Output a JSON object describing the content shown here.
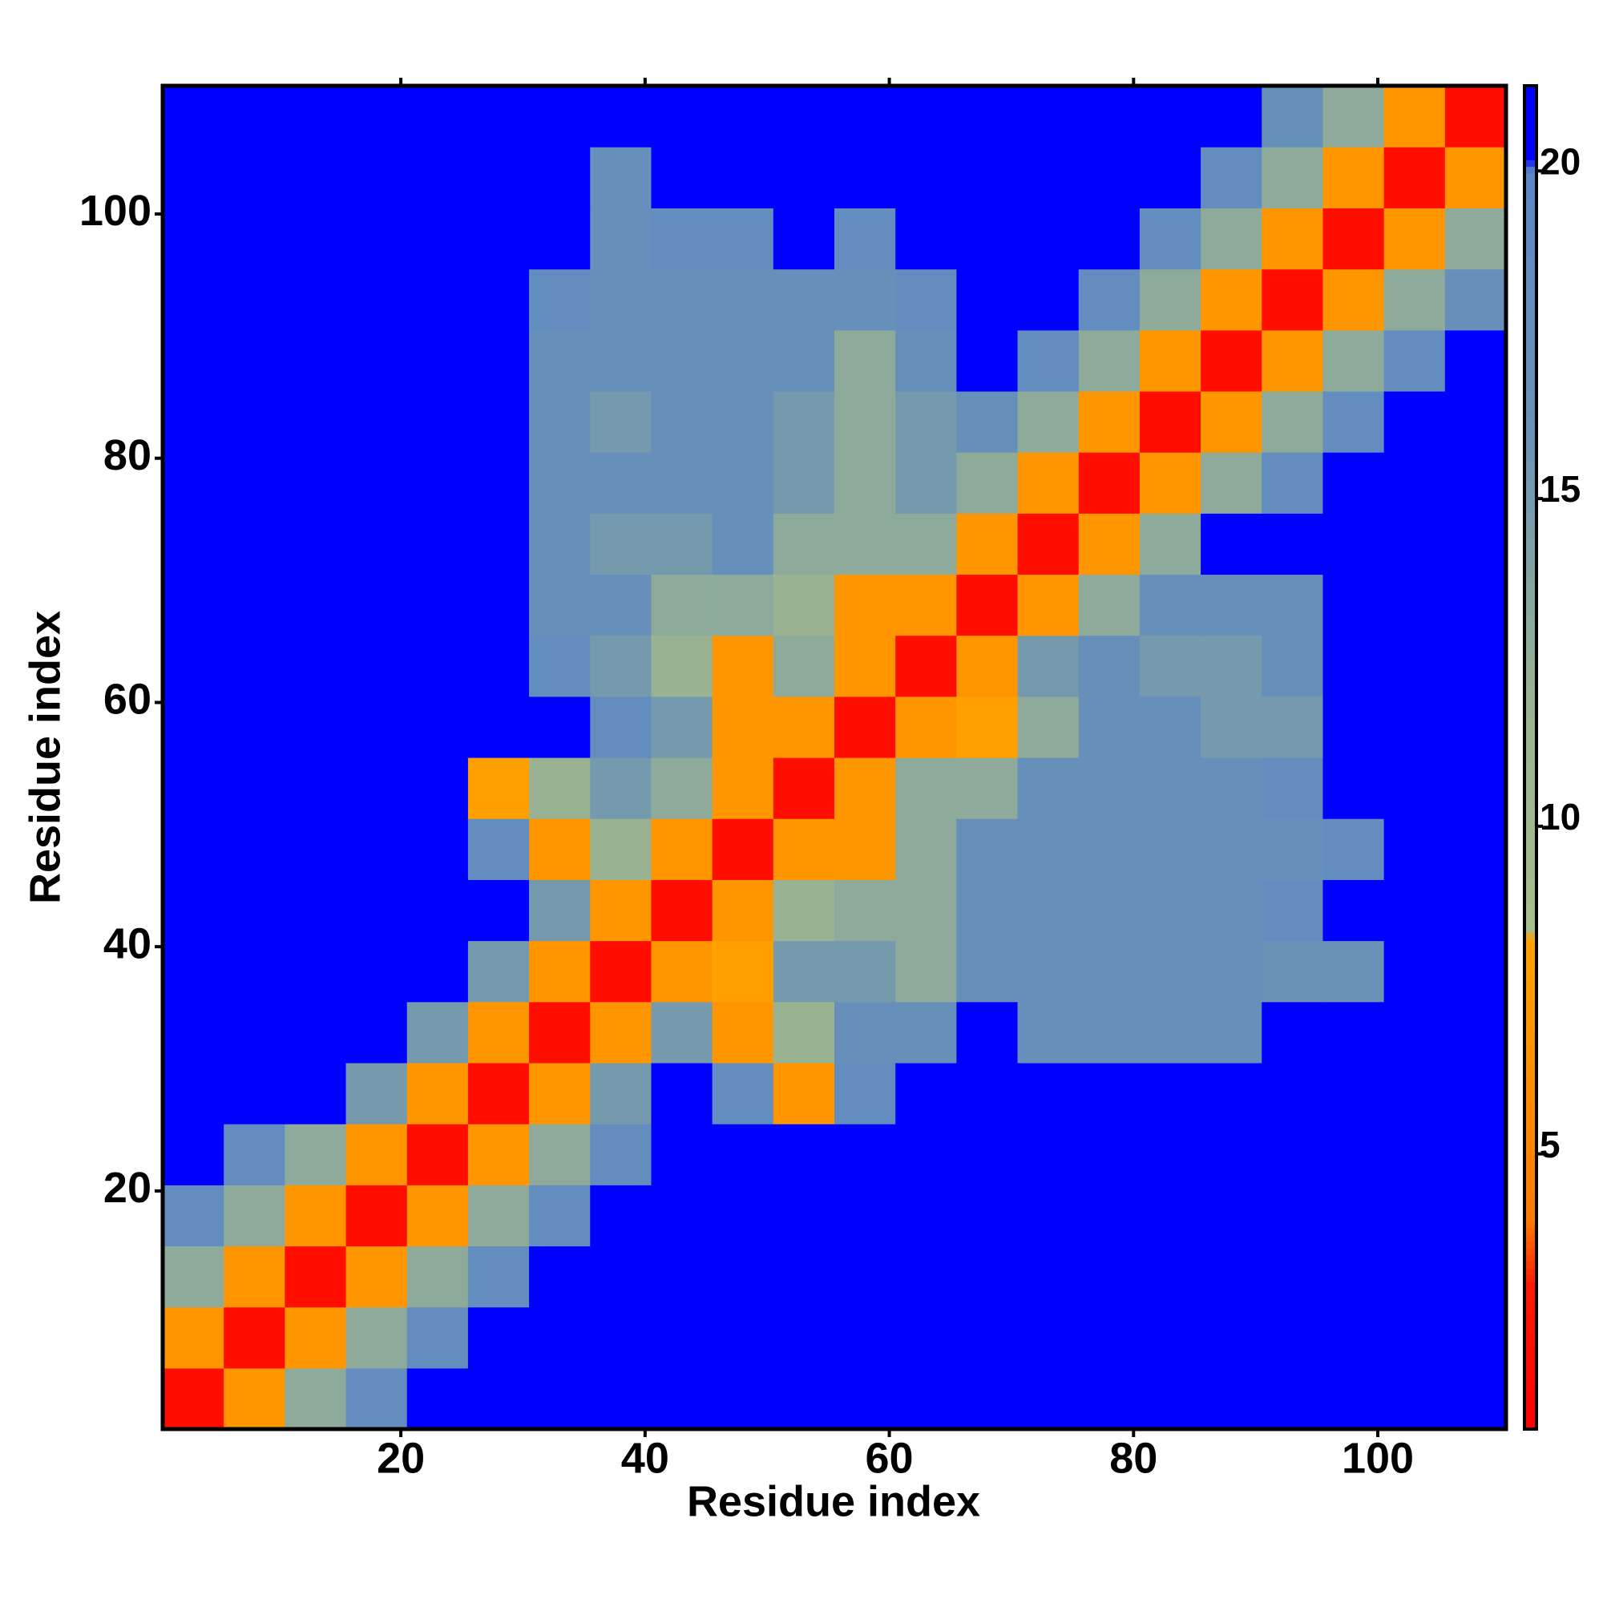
{
  "chart_data": {
    "type": "heatmap",
    "xlabel": "Residue index",
    "ylabel": "Residue index",
    "xbins": [
      0.5,
      5.5,
      10.5,
      15.5,
      20.5,
      25.5,
      30.5,
      35.5,
      40.5,
      45.5,
      50.5,
      55.5,
      60.5,
      65.5,
      70.5,
      75.5,
      80.5,
      85.5,
      90.5,
      95.5,
      100.5,
      105.5,
      110.5
    ],
    "ybins": [
      0.5,
      5.5,
      10.5,
      15.5,
      20.5,
      25.5,
      30.5,
      35.5,
      40.5,
      45.5,
      50.5,
      55.5,
      60.5,
      65.5,
      70.5,
      75.5,
      80.5,
      85.5,
      90.5,
      95.5,
      100.5,
      105.5,
      110.5
    ],
    "values": [
      [
        2,
        7,
        13,
        18,
        21,
        21,
        21,
        21,
        21,
        21,
        21,
        21,
        21,
        21,
        21,
        21,
        21,
        21,
        21,
        21,
        21,
        21
      ],
      [
        7,
        2,
        7,
        13,
        18,
        21,
        21,
        21,
        21,
        21,
        21,
        21,
        21,
        21,
        21,
        21,
        21,
        21,
        21,
        21,
        21,
        21
      ],
      [
        13,
        7,
        2,
        7,
        13,
        18,
        21,
        21,
        21,
        21,
        21,
        21,
        21,
        21,
        21,
        21,
        21,
        21,
        21,
        21,
        21,
        21
      ],
      [
        18,
        13,
        7,
        2,
        7,
        13,
        18,
        21,
        21,
        21,
        21,
        21,
        21,
        21,
        21,
        21,
        21,
        21,
        21,
        21,
        21,
        21
      ],
      [
        21,
        18,
        13,
        7,
        2,
        7,
        13,
        18,
        21,
        21,
        21,
        21,
        21,
        21,
        21,
        21,
        21,
        21,
        21,
        21,
        21,
        21
      ],
      [
        21,
        21,
        21,
        15,
        7,
        2,
        7,
        15,
        21,
        18,
        7,
        18,
        21,
        21,
        21,
        21,
        21,
        21,
        21,
        21,
        21,
        21
      ],
      [
        21,
        21,
        21,
        21,
        15,
        7,
        2,
        7,
        15,
        7,
        12,
        17,
        17,
        21,
        17,
        17,
        17,
        17,
        21,
        21,
        21,
        21
      ],
      [
        21,
        21,
        21,
        21,
        21,
        15,
        7,
        2,
        7,
        8,
        15,
        15,
        13,
        17,
        17,
        17,
        17,
        17,
        16,
        16,
        21,
        21
      ],
      [
        21,
        21,
        21,
        21,
        21,
        21,
        15,
        7,
        2,
        7,
        12,
        13,
        13,
        17,
        17,
        17,
        17,
        17,
        18,
        21,
        21,
        21
      ],
      [
        21,
        21,
        21,
        21,
        21,
        18,
        7,
        12,
        7,
        2,
        7,
        7,
        13,
        17,
        17,
        17,
        17,
        17,
        17,
        18,
        21,
        21
      ],
      [
        21,
        21,
        21,
        21,
        21,
        8,
        12,
        15,
        13,
        7,
        2,
        7,
        13,
        13,
        17,
        17,
        17,
        17,
        18,
        21,
        21,
        21
      ],
      [
        21,
        21,
        21,
        21,
        21,
        21,
        21,
        18,
        15,
        7,
        7,
        2,
        7,
        8,
        13,
        17,
        17,
        15,
        15,
        21,
        21,
        21
      ],
      [
        21,
        21,
        21,
        21,
        21,
        21,
        18,
        15,
        12,
        7,
        13,
        7,
        2,
        7,
        15,
        17,
        15,
        15,
        17,
        21,
        21,
        21
      ],
      [
        21,
        21,
        21,
        21,
        21,
        21,
        17,
        17,
        13,
        13,
        12,
        7,
        7,
        2,
        7,
        13,
        17,
        17,
        17,
        21,
        21,
        21
      ],
      [
        21,
        21,
        21,
        21,
        21,
        21,
        17,
        15,
        15,
        17,
        13,
        13,
        13,
        7,
        2,
        7,
        13,
        21,
        21,
        21,
        21,
        21
      ],
      [
        21,
        21,
        21,
        21,
        21,
        21,
        17,
        17,
        17,
        17,
        15,
        13,
        15,
        13,
        7,
        2,
        7,
        13,
        18,
        21,
        21,
        21
      ],
      [
        21,
        21,
        21,
        21,
        21,
        21,
        17,
        15,
        17,
        17,
        15,
        13,
        15,
        17,
        13,
        7,
        2,
        7,
        13,
        18,
        21,
        21
      ],
      [
        21,
        21,
        21,
        21,
        21,
        21,
        17,
        17,
        17,
        17,
        17,
        13,
        17,
        21,
        18,
        13,
        7,
        2,
        7,
        13,
        18,
        21
      ],
      [
        21,
        21,
        21,
        21,
        21,
        21,
        18,
        17,
        17,
        17,
        17,
        17,
        18,
        21,
        21,
        18,
        13,
        7,
        2,
        7,
        13,
        17
      ],
      [
        21,
        21,
        21,
        21,
        21,
        21,
        21,
        17,
        18,
        18,
        21,
        18,
        21,
        21,
        21,
        21,
        18,
        13,
        7,
        2,
        7,
        13
      ],
      [
        21,
        21,
        21,
        21,
        21,
        21,
        21,
        17,
        21,
        21,
        21,
        21,
        21,
        21,
        21,
        21,
        21,
        18,
        13,
        7,
        2,
        7
      ],
      [
        21,
        21,
        21,
        21,
        21,
        21,
        21,
        21,
        21,
        21,
        21,
        21,
        21,
        21,
        21,
        21,
        21,
        21,
        17,
        13,
        7,
        2
      ]
    ],
    "xlim": [
      0.5,
      110.5
    ],
    "ylim": [
      0.5,
      110.5
    ],
    "xticks": [
      20,
      40,
      60,
      80,
      100
    ],
    "yticks": [
      20,
      40,
      60,
      80,
      100
    ],
    "zlim": [
      0.8,
      21.3
    ],
    "zticks": [
      5,
      10,
      15,
      20
    ],
    "colorscale": [
      {
        "value": 0.8,
        "color": "#ff0000"
      },
      {
        "value": 3,
        "color": "#ff1a00"
      },
      {
        "value": 4,
        "color": "#ff7a00"
      },
      {
        "value": 8.3,
        "color": "#ffa200"
      },
      {
        "value": 8.4,
        "color": "#a8bd8c"
      },
      {
        "value": 12,
        "color": "#98b292"
      },
      {
        "value": 16,
        "color": "#6a92b6"
      },
      {
        "value": 20,
        "color": "#5b88c6"
      },
      {
        "value": 20.2,
        "color": "#0000ff"
      },
      {
        "value": 21.3,
        "color": "#0000ff"
      }
    ]
  }
}
